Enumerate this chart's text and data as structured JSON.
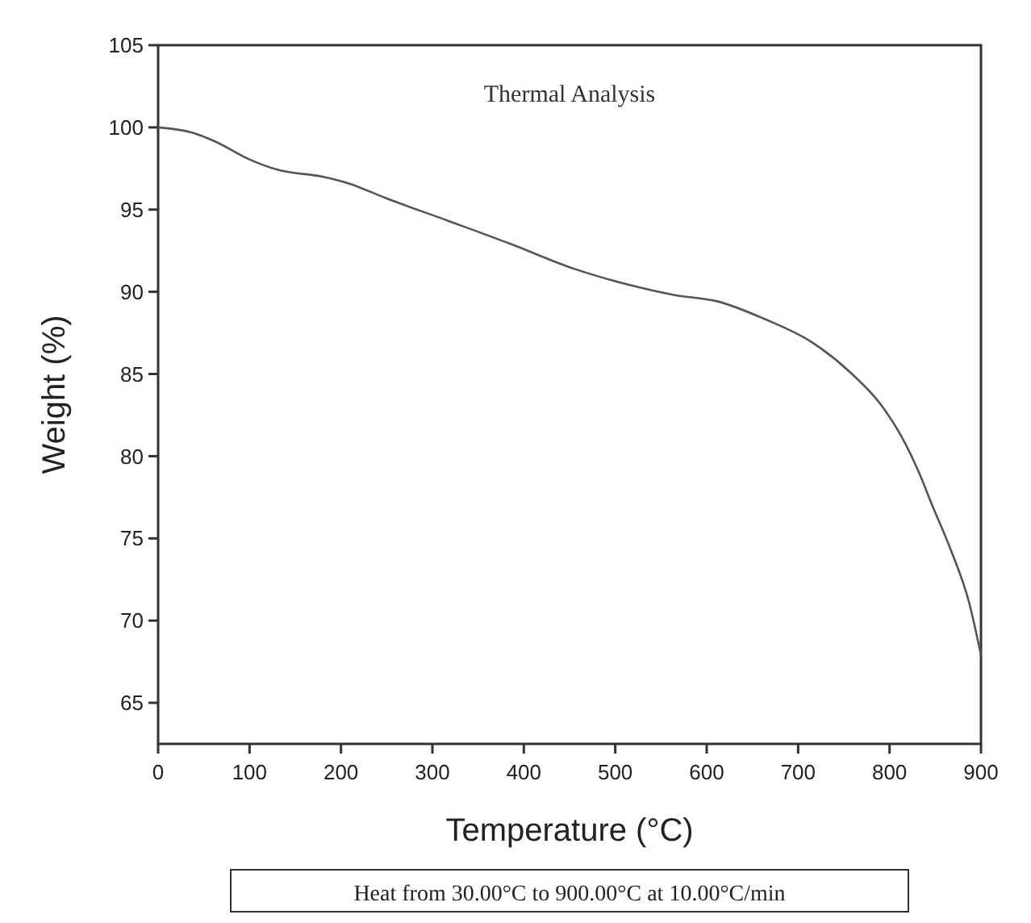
{
  "chart_data": {
    "type": "line",
    "title": "Thermal Analysis",
    "xlabel": "Temperature (°C)",
    "ylabel": "Weight (%)",
    "annotations": [
      "Heat from 30.00°C to 900.00°C at 10.00°C/min"
    ],
    "xlim": [
      0,
      900
    ],
    "xticks": [
      0,
      100,
      200,
      300,
      400,
      500,
      600,
      700,
      800,
      900
    ],
    "ylim": [
      62.5,
      105
    ],
    "yticks": [
      65,
      70,
      75,
      80,
      85,
      90,
      95,
      100,
      105
    ],
    "line_style": "solid",
    "marker": "none",
    "series": [
      {
        "color": "#555555",
        "x": [
          0,
          36,
          64,
          98,
          132,
          180,
          208,
          249,
          318,
          386,
          455,
          524,
          565,
          613,
          661,
          716,
          757,
          791,
          812,
          833,
          846,
          867,
          887,
          900
        ],
        "values": [
          100,
          99.7,
          99.1,
          98.1,
          97.4,
          97.0,
          96.6,
          95.7,
          94.3,
          92.9,
          91.4,
          90.3,
          89.8,
          89.4,
          88.4,
          86.9,
          85.1,
          83.1,
          81.3,
          78.9,
          77.1,
          74.3,
          71.1,
          67.9
        ]
      }
    ]
  }
}
